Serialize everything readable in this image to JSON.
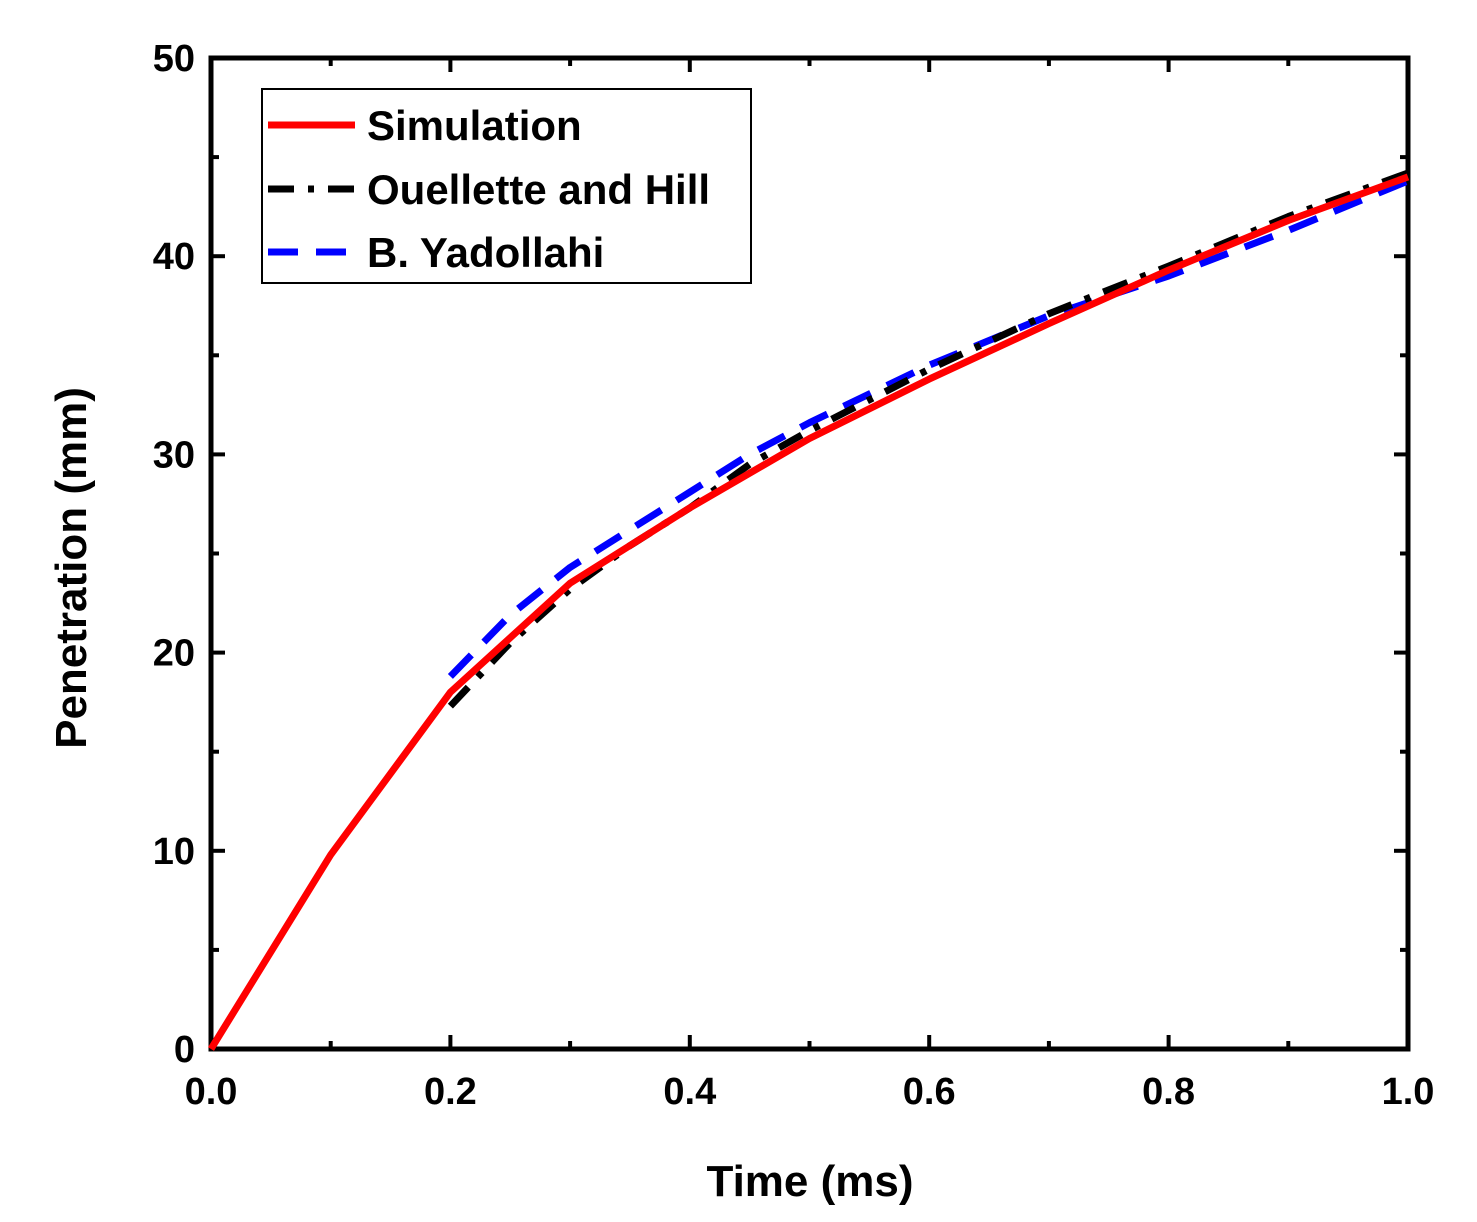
{
  "chart_data": {
    "type": "line",
    "title": "",
    "xlabel": "Time (ms)",
    "ylabel": "Penetration (mm)",
    "xlim": [
      0.0,
      1.0
    ],
    "ylim": [
      0,
      50
    ],
    "x_ticks": [
      "0.0",
      "0.2",
      "0.4",
      "0.6",
      "0.8",
      "1.0"
    ],
    "x_tick_values": [
      0.0,
      0.2,
      0.4,
      0.6,
      0.8,
      1.0
    ],
    "y_ticks": [
      "0",
      "10",
      "20",
      "30",
      "40",
      "50"
    ],
    "y_tick_values": [
      0,
      10,
      20,
      30,
      40,
      50
    ],
    "grid": false,
    "legend_position": "top-left",
    "series": [
      {
        "name": "Simulation",
        "color": "#ff0000",
        "style": "solid",
        "x": [
          0.0,
          0.1,
          0.2,
          0.3,
          0.4,
          0.5,
          0.6,
          0.7,
          0.8,
          0.9,
          1.0
        ],
        "y": [
          0.0,
          9.8,
          18.0,
          23.5,
          27.3,
          30.8,
          33.8,
          36.6,
          39.3,
          41.8,
          44.0
        ]
      },
      {
        "name": "Ouellette and Hill",
        "color": "#000000",
        "style": "dash-dot",
        "x": [
          0.2,
          0.25,
          0.3,
          0.35,
          0.4,
          0.45,
          0.5,
          0.6,
          0.7,
          0.8,
          0.9,
          1.0
        ],
        "y": [
          17.3,
          20.5,
          23.2,
          25.4,
          27.3,
          29.5,
          31.2,
          34.3,
          37.1,
          39.5,
          42.0,
          44.2
        ]
      },
      {
        "name": "B. Yadollahi",
        "color": "#0000ff",
        "style": "dashed",
        "x": [
          0.2,
          0.25,
          0.3,
          0.35,
          0.4,
          0.45,
          0.5,
          0.6,
          0.7,
          0.8,
          0.9,
          1.0
        ],
        "y": [
          18.8,
          21.9,
          24.3,
          26.2,
          28.1,
          30.0,
          31.6,
          34.5,
          37.0,
          39.0,
          41.3,
          43.8
        ]
      }
    ]
  }
}
